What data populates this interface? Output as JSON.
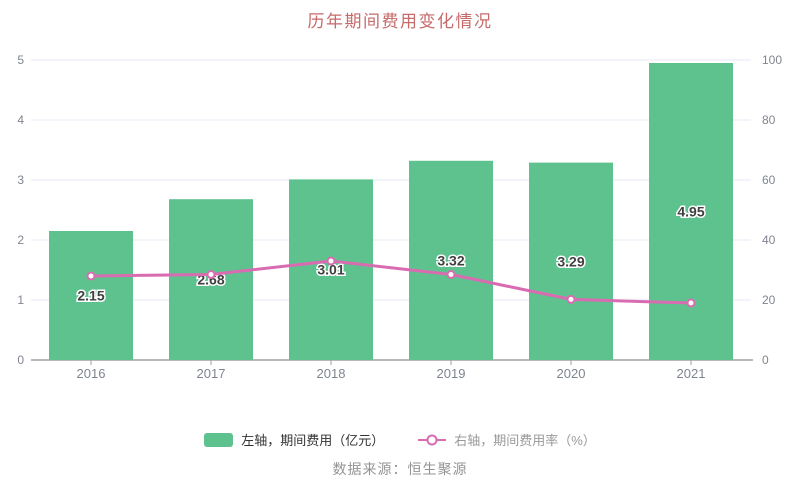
{
  "title": "历年期间费用变化情况",
  "source_note": "数据来源：恒生聚源",
  "colors": {
    "title_text": "#c66a6a",
    "bar_fill": "#5ec28f",
    "line_stroke": "#d96cb1",
    "gridline": "#e5eaf3",
    "axis_line": "#6e7079",
    "axis_label": "#7f8590",
    "bar_value_label": "#404040",
    "legend_bar_text": "#333333",
    "legend_line_text": "#999999",
    "source_text": "#949494"
  },
  "legend": {
    "bar_label": "左轴，期间费用（亿元）",
    "line_label": "右轴，期间费用率（%）"
  },
  "chart_data": {
    "type": "bar",
    "title": "历年期间费用变化情况",
    "categories": [
      "2016",
      "2017",
      "2018",
      "2019",
      "2020",
      "2021"
    ],
    "series": [
      {
        "name": "左轴，期间费用（亿元）",
        "type": "bar",
        "axis": "left",
        "values": [
          2.15,
          2.68,
          3.01,
          3.32,
          3.29,
          4.95
        ],
        "color": "#5ec28f",
        "data_labels": [
          "2.15",
          "2.68",
          "3.01",
          "3.32",
          "3.29",
          "4.95"
        ]
      },
      {
        "name": "右轴，期间费用率（%）",
        "type": "line",
        "axis": "right",
        "values": [
          28.0,
          28.5,
          33.0,
          28.5,
          20.2,
          19.0
        ],
        "color": "#d96cb1",
        "data_labels": []
      }
    ],
    "left_axis": {
      "min": 0,
      "max": 5,
      "ticks": [
        0,
        1,
        2,
        3,
        4,
        5
      ]
    },
    "right_axis": {
      "min": 0,
      "max": 100,
      "ticks": [
        0,
        20,
        40,
        60,
        80,
        100
      ]
    },
    "grid": true,
    "legend_position": "bottom"
  }
}
